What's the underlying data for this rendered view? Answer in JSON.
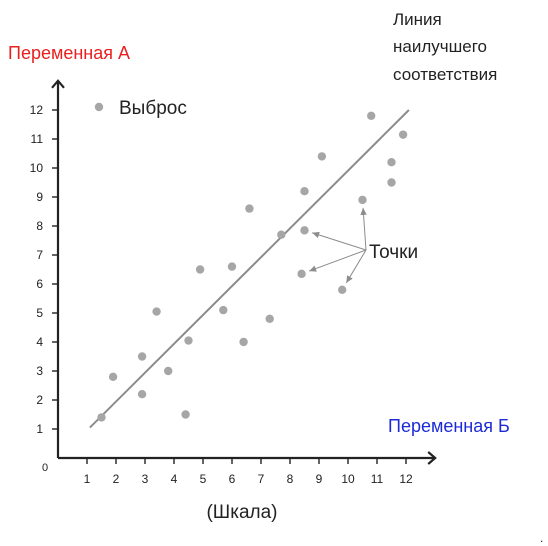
{
  "chart_data": {
    "type": "scatter",
    "title": "",
    "ylabel": "Переменная А",
    "xlabel": "Переменная Б",
    "x_caption": "(Шкала)",
    "origin_label": "0",
    "xlim": [
      0,
      12.8
    ],
    "ylim": [
      0,
      12.8
    ],
    "x_ticks": [
      1,
      2,
      3,
      4,
      5,
      6,
      7,
      8,
      9,
      10,
      11,
      12
    ],
    "y_ticks": [
      1,
      2,
      3,
      4,
      5,
      6,
      7,
      8,
      9,
      10,
      11,
      12
    ],
    "points": [
      {
        "x": 1.5,
        "y": 1.4
      },
      {
        "x": 1.9,
        "y": 2.8
      },
      {
        "x": 2.9,
        "y": 2.2
      },
      {
        "x": 2.9,
        "y": 3.5
      },
      {
        "x": 3.4,
        "y": 5.05
      },
      {
        "x": 3.8,
        "y": 3.0
      },
      {
        "x": 4.4,
        "y": 1.5
      },
      {
        "x": 4.5,
        "y": 4.05
      },
      {
        "x": 4.9,
        "y": 6.5
      },
      {
        "x": 5.7,
        "y": 5.1
      },
      {
        "x": 6.0,
        "y": 6.6
      },
      {
        "x": 6.4,
        "y": 4.0
      },
      {
        "x": 6.6,
        "y": 8.6
      },
      {
        "x": 7.3,
        "y": 4.8
      },
      {
        "x": 7.7,
        "y": 7.7
      },
      {
        "x": 8.4,
        "y": 6.35
      },
      {
        "x": 8.5,
        "y": 7.85
      },
      {
        "x": 8.5,
        "y": 9.2
      },
      {
        "x": 9.1,
        "y": 10.4
      },
      {
        "x": 9.8,
        "y": 5.8
      },
      {
        "x": 10.5,
        "y": 8.9
      },
      {
        "x": 10.8,
        "y": 11.8
      },
      {
        "x": 11.5,
        "y": 9.5
      },
      {
        "x": 11.5,
        "y": 10.2
      },
      {
        "x": 11.9,
        "y": 11.15
      }
    ],
    "best_fit_line": {
      "x": [
        1.1,
        12.1
      ],
      "y": [
        1.05,
        12.0
      ]
    },
    "annotations": {
      "outlier_label": "Выброс",
      "points_label": "Точки",
      "best_fit_label": [
        "Линия",
        "наилучшего",
        "соответствия"
      ],
      "points_arrow_targets": [
        {
          "x": 8.5,
          "y": 7.85
        },
        {
          "x": 8.4,
          "y": 6.35
        },
        {
          "x": 10.5,
          "y": 8.9
        },
        {
          "x": 9.8,
          "y": 5.8
        }
      ]
    },
    "colors": {
      "ylabel": "#e8201f",
      "xlabel": "#1c2bd6",
      "points": "#a6a6a6",
      "line": "#8c8c8c",
      "axis": "#222222"
    },
    "footnote": "."
  }
}
